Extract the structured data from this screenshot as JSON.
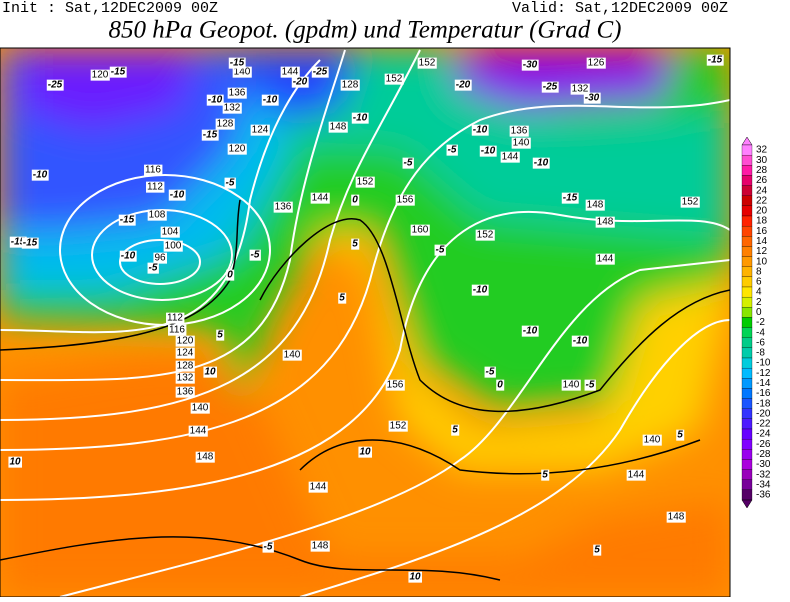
{
  "header": {
    "init": "Init : Sat,12DEC2009 00Z",
    "valid": "Valid: Sat,12DEC2009 00Z",
    "title": "850 hPa Geopot. (gpdm) und Temperatur (Grad C)"
  },
  "colorbar": {
    "labels": [
      32,
      30,
      28,
      26,
      24,
      22,
      20,
      18,
      16,
      14,
      12,
      10,
      8,
      6,
      4,
      2,
      0,
      -2,
      -4,
      -6,
      -8,
      -10,
      -12,
      -14,
      -16,
      -18,
      -20,
      -22,
      -24,
      -26,
      -28,
      -30,
      -32,
      -34,
      -36
    ],
    "colors": [
      "#ff80ff",
      "#ff4dd2",
      "#ff1aa6",
      "#e6006b",
      "#cc0033",
      "#cc0000",
      "#e60000",
      "#ff2200",
      "#ff4400",
      "#ff6600",
      "#ff8000",
      "#ff9900",
      "#ffb300",
      "#ffcc00",
      "#ffe600",
      "#d4f000",
      "#88e600",
      "#00cc00",
      "#00d455",
      "#00cc88",
      "#00ccaa",
      "#00ccdd",
      "#00bbff",
      "#0099ff",
      "#0077ff",
      "#1a55ff",
      "#3333ff",
      "#4d1aff",
      "#6600ff",
      "#8000ff",
      "#9900ee",
      "#aa00dd",
      "#9900bb",
      "#770099",
      "#550066"
    ]
  },
  "map": {
    "geopotential_labels": [
      120,
      140,
      144,
      136,
      132,
      128,
      124,
      120,
      116,
      112,
      108,
      104,
      100,
      96,
      112,
      116,
      120,
      124,
      128,
      132,
      136,
      140,
      144,
      148,
      144,
      148,
      140,
      136,
      144,
      148,
      152,
      156,
      160,
      152,
      156,
      152,
      152,
      152,
      136,
      140,
      144,
      148,
      152,
      148,
      144,
      140,
      140,
      144,
      148,
      126,
      132,
      128
    ],
    "temperature_labels": [
      -25,
      -15,
      -10,
      -15,
      -15,
      -10,
      -5,
      -10,
      -15,
      -20,
      -25,
      -10,
      -15,
      -10,
      -5,
      -5,
      -10,
      -5,
      -10,
      -20,
      -30,
      -25,
      -30,
      -15,
      -10,
      -10,
      -5,
      -10,
      -10,
      -5,
      -10,
      -15,
      -5,
      0,
      0,
      5,
      5,
      5,
      10,
      10,
      10,
      5,
      5,
      5,
      10,
      5,
      -5,
      0,
      -5,
      -15
    ]
  }
}
